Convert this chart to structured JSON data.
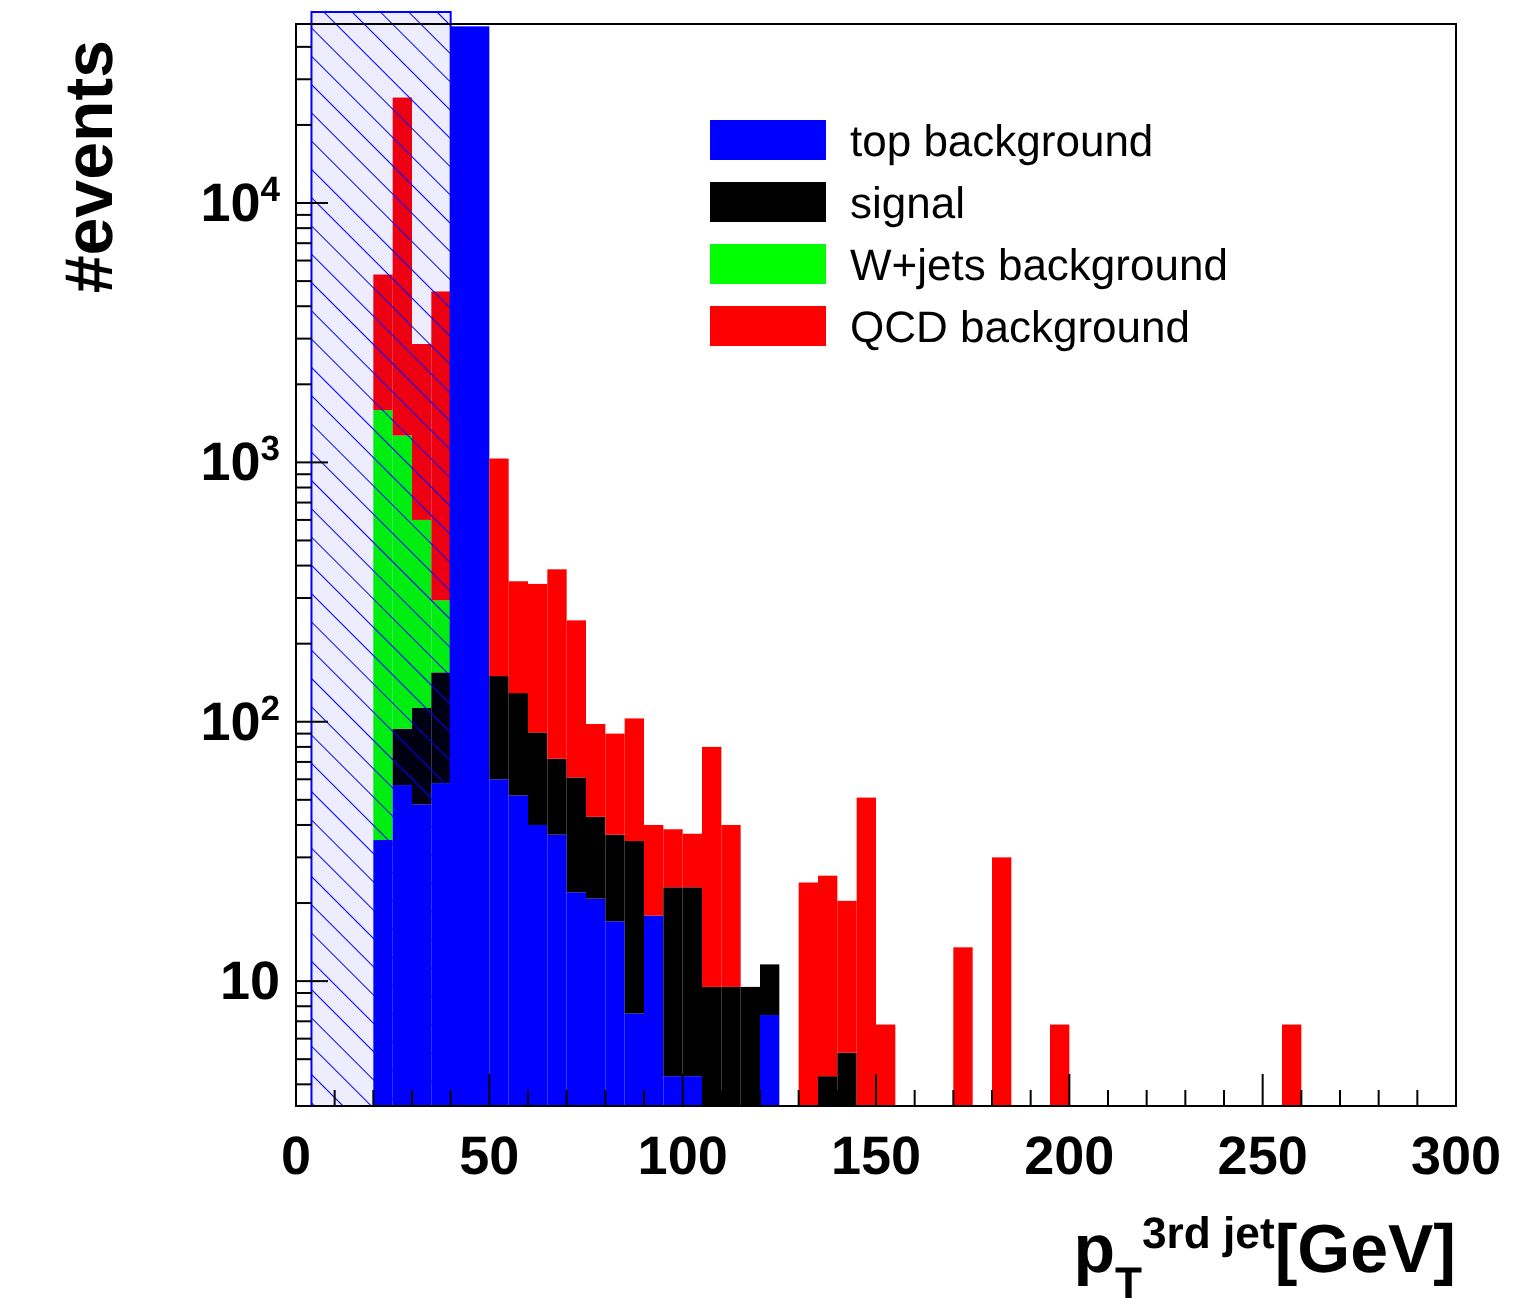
{
  "chart_data": {
    "type": "bar",
    "stacked": true,
    "xlabel": "p$_{T}$$^{3rd jet}$[GeV]",
    "ylabel": "#events",
    "x": [
      22.5,
      27.5,
      32.5,
      37.5,
      42.5,
      47.5,
      52.5,
      57.5,
      62.5,
      67.5,
      72.5,
      77.5,
      82.5,
      87.5,
      92.5,
      97.5,
      102.5,
      107.5,
      112.5,
      117.5,
      122.5,
      127.5,
      132.5,
      137.5,
      142.5,
      147.5,
      152.5,
      157.5,
      162.5,
      167.5,
      172.5,
      177.5,
      182.5,
      187.5,
      192.5,
      197.5,
      202.5,
      207.5,
      212.5,
      217.5,
      222.5,
      227.5,
      232.5,
      237.5,
      242.5,
      247.5,
      252.5,
      257.5
    ],
    "series": [
      {
        "name": "top background",
        "color": "#0000ff",
        "values": [
          35,
          57,
          48,
          58,
          48000,
          48000,
          60,
          52,
          40,
          36.7,
          22,
          20.8,
          17,
          7.5,
          17.9,
          4.3,
          4.3,
          null,
          null,
          null,
          7.4,
          null,
          null,
          null,
          null,
          null,
          null,
          null,
          null,
          null,
          null,
          null,
          null,
          null,
          null,
          null,
          null,
          null,
          null,
          null,
          null,
          null,
          null,
          null,
          null,
          null,
          null,
          null
        ]
      },
      {
        "name": "signal",
        "color": "#000000",
        "values": [
          null,
          37,
          65,
          97,
          null,
          null,
          90,
          77,
          51,
          35.3,
          39,
          22.2,
          19.7,
          27.2,
          null,
          18.7,
          18.7,
          9.5,
          9.5,
          9.5,
          4.2,
          null,
          null,
          4.3,
          5.3,
          null,
          null,
          null,
          null,
          null,
          null,
          null,
          null,
          null,
          null,
          null,
          null,
          null,
          null,
          null,
          null,
          null,
          null,
          null,
          null,
          null,
          null,
          null
        ]
      },
      {
        "name": "W+jets background",
        "color": "#00ff00",
        "values": [
          1555,
          1176,
          487,
          139,
          null,
          null,
          null,
          null,
          null,
          null,
          null,
          null,
          null,
          null,
          null,
          null,
          null,
          null,
          null,
          null,
          null,
          null,
          null,
          null,
          null,
          null,
          null,
          null,
          null,
          null,
          null,
          null,
          null,
          null,
          null,
          null,
          null,
          null,
          null,
          null,
          null,
          null,
          null,
          null,
          null,
          null,
          null,
          null
        ]
      },
      {
        "name": "QCD background",
        "color": "#ff0000",
        "values": [
          3710,
          24230,
          2260,
          4266,
          null,
          null,
          885,
          219,
          249,
          315,
          185,
          55,
          53.3,
          68.3,
          22.1,
          15.5,
          14,
          70.5,
          30.5,
          null,
          null,
          null,
          24,
          21.2,
          15.1,
          51,
          6.8,
          null,
          null,
          null,
          13.5,
          null,
          30,
          null,
          null,
          6.8,
          null,
          null,
          null,
          null,
          null,
          null,
          null,
          null,
          null,
          null,
          null,
          6.8
        ]
      }
    ],
    "xlim": [
      0,
      300
    ],
    "xticks": [
      0,
      {
        "value": 10,
        "label": null
      },
      {
        "value": 20,
        "label": null
      },
      {
        "value": 30,
        "label": null
      },
      {
        "value": 40,
        "label": null
      },
      50,
      {
        "value": 60,
        "label": null
      },
      {
        "value": 70,
        "label": null
      },
      {
        "value": 80,
        "label": null
      },
      {
        "value": 90,
        "label": null
      },
      100,
      {
        "value": 110,
        "label": null
      },
      {
        "value": 120,
        "label": null
      },
      {
        "value": 130,
        "label": null
      },
      {
        "value": 140,
        "label": null
      },
      150,
      {
        "value": 160,
        "label": null
      },
      {
        "value": 170,
        "label": null
      },
      {
        "value": 180,
        "label": null
      },
      {
        "value": 190,
        "label": null
      },
      200,
      {
        "value": 210,
        "label": null
      },
      {
        "value": 220,
        "label": null
      },
      {
        "value": 230,
        "label": null
      },
      {
        "value": 240,
        "label": null
      },
      250,
      {
        "value": 260,
        "label": null
      },
      {
        "value": 270,
        "label": null
      },
      {
        "value": 280,
        "label": null
      },
      {
        "value": 290,
        "label": null
      },
      300
    ],
    "ylim": [
      3.3,
      49000
    ],
    "log": true,
    "yticks": [
      {
        "value": 4,
        "label": null
      },
      {
        "value": 5,
        "label": null
      },
      {
        "value": 6,
        "label": null
      },
      {
        "value": 7,
        "label": null
      },
      {
        "value": 8,
        "label": null
      },
      {
        "value": 9,
        "label": null
      },
      10,
      {
        "value": 20,
        "label": null
      },
      {
        "value": 30,
        "label": null
      },
      {
        "value": 40,
        "label": null
      },
      {
        "value": 50,
        "label": null
      },
      {
        "value": 60,
        "label": null
      },
      {
        "value": 70,
        "label": null
      },
      {
        "value": 80,
        "label": null
      },
      {
        "value": 90,
        "label": null
      },
      {
        "value": 100,
        "label": "10$^{2}$"
      },
      {
        "value": 200,
        "label": null
      },
      {
        "value": 300,
        "label": null
      },
      {
        "value": 400,
        "label": null
      },
      {
        "value": 500,
        "label": null
      },
      {
        "value": 600,
        "label": null
      },
      {
        "value": 700,
        "label": null
      },
      {
        "value": 800,
        "label": null
      },
      {
        "value": 900,
        "label": null
      },
      {
        "value": 1000,
        "label": "10$^{3}$"
      },
      {
        "value": 2000,
        "label": null
      },
      {
        "value": 3000,
        "label": null
      },
      {
        "value": 4000,
        "label": null
      },
      {
        "value": 5000,
        "label": null
      },
      {
        "value": 6000,
        "label": null
      },
      {
        "value": 7000,
        "label": null
      },
      {
        "value": 8000,
        "label": null
      },
      {
        "value": 9000,
        "label": null
      },
      {
        "value": 10000,
        "label": "10$^{4}$"
      },
      {
        "value": 20000,
        "label": null
      },
      {
        "value": 30000,
        "label": null
      },
      {
        "value": 40000,
        "label": null
      }
    ],
    "bands": [
      {
        "axis": "x",
        "from": 4,
        "to": 40,
        "color": "#0000ff"
      }
    ],
    "legend": "top right"
  }
}
